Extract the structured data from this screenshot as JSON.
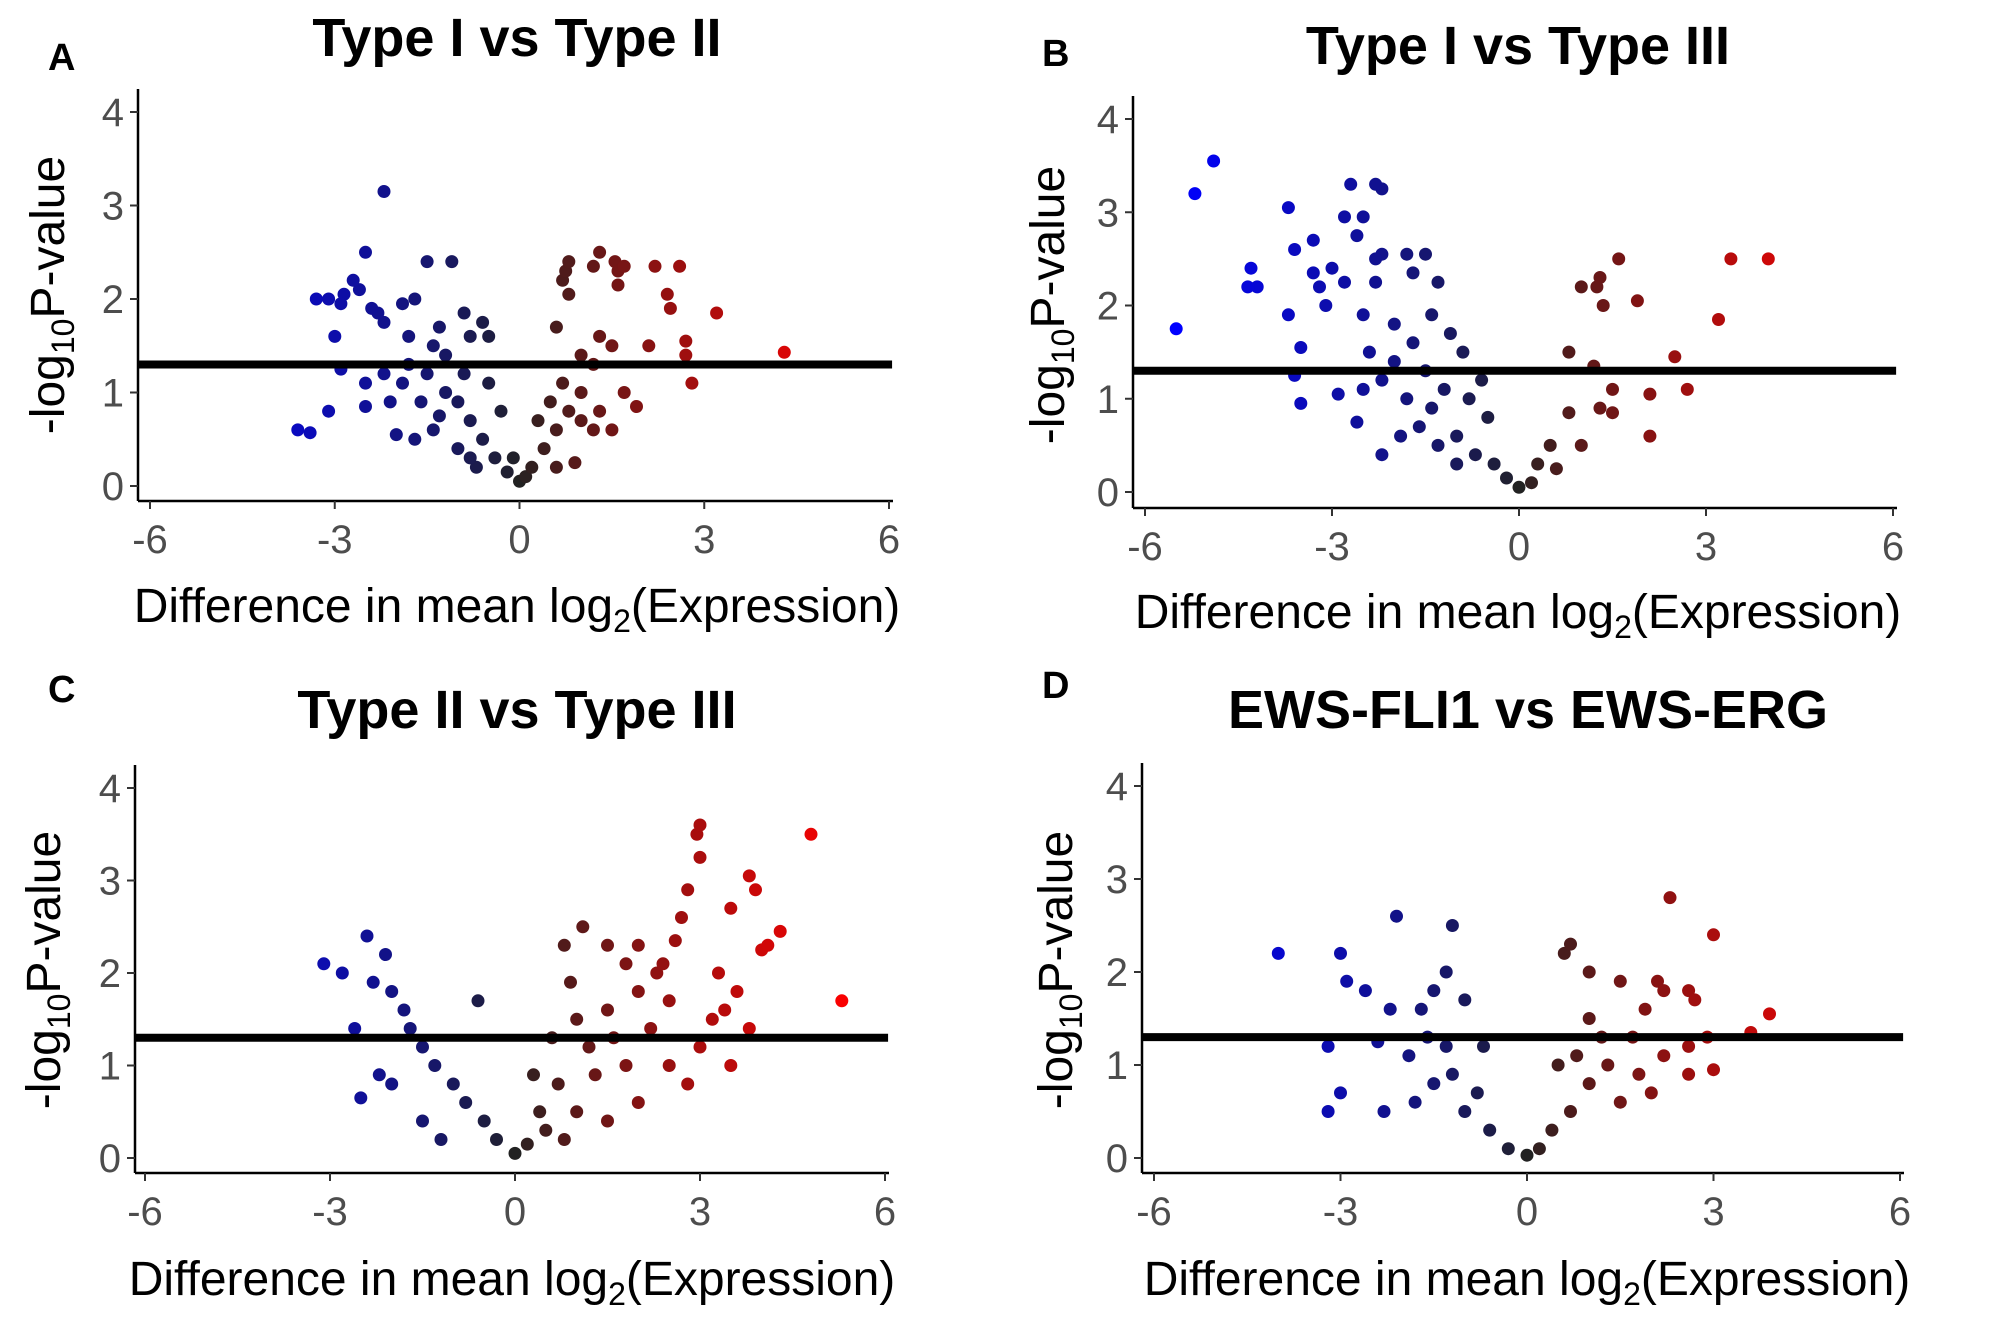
{
  "chart_data": [
    {
      "type": "scatter",
      "panel_letter": "A",
      "title": "Type I vs Type II",
      "xlabel": {
        "pre": "Difference in mean log",
        "sub": "2",
        "post": "(Expression)"
      },
      "ylabel": {
        "pre": "-log",
        "sub": "10",
        "post": "P-value"
      },
      "xlim": [
        -6,
        6
      ],
      "ylim": [
        0,
        4
      ],
      "xticks": [
        "-6",
        "-3",
        "0",
        "3",
        "6"
      ],
      "yticks": [
        "0",
        "1",
        "2",
        "3",
        "4"
      ],
      "threshold": 1.3,
      "grid": false,
      "color_scale": {
        "negative": "#0000ff",
        "zero": "#222222",
        "positive": "#ff0000"
      },
      "points": [
        [
          -3.6,
          0.6
        ],
        [
          -3.4,
          0.57
        ],
        [
          -3.1,
          0.8
        ],
        [
          -3.3,
          2.0
        ],
        [
          -3.1,
          2.0
        ],
        [
          -2.9,
          1.95
        ],
        [
          -2.85,
          2.05
        ],
        [
          -3.0,
          1.6
        ],
        [
          -2.6,
          2.1
        ],
        [
          -2.7,
          2.2
        ],
        [
          -2.5,
          2.5
        ],
        [
          -2.2,
          3.15
        ],
        [
          -2.4,
          1.9
        ],
        [
          -2.3,
          1.85
        ],
        [
          -2.2,
          1.75
        ],
        [
          -1.9,
          1.95
        ],
        [
          -1.7,
          2.0
        ],
        [
          -1.5,
          2.4
        ],
        [
          -1.1,
          2.4
        ],
        [
          -0.9,
          1.85
        ],
        [
          -0.6,
          1.75
        ],
        [
          -2.5,
          1.1
        ],
        [
          -2.5,
          0.85
        ],
        [
          -2.9,
          1.25
        ],
        [
          -2.1,
          0.9
        ],
        [
          -2.0,
          0.55
        ],
        [
          -1.7,
          0.5
        ],
        [
          -0.8,
          1.6
        ],
        [
          -0.5,
          1.6
        ],
        [
          -1.3,
          1.7
        ],
        [
          -1.4,
          1.5
        ],
        [
          -1.8,
          1.6
        ],
        [
          0.8,
          2.4
        ],
        [
          0.75,
          2.3
        ],
        [
          0.7,
          2.2
        ],
        [
          0.8,
          2.05
        ],
        [
          1.3,
          2.5
        ],
        [
          1.2,
          2.35
        ],
        [
          1.55,
          2.4
        ],
        [
          1.6,
          2.3
        ],
        [
          1.7,
          2.35
        ],
        [
          1.6,
          2.15
        ],
        [
          2.2,
          2.35
        ],
        [
          2.6,
          2.35
        ],
        [
          2.4,
          2.05
        ],
        [
          2.45,
          1.9
        ],
        [
          3.2,
          1.85
        ],
        [
          4.3,
          1.43
        ],
        [
          2.7,
          1.55
        ],
        [
          2.7,
          1.4
        ],
        [
          2.8,
          1.1
        ],
        [
          2.1,
          1.5
        ],
        [
          1.9,
          0.85
        ],
        [
          1.7,
          1.0
        ],
        [
          1.5,
          0.6
        ],
        [
          1.3,
          0.8
        ],
        [
          0.6,
          1.7
        ],
        [
          1.3,
          1.6
        ],
        [
          1.5,
          1.5
        ],
        [
          1.0,
          0.7
        ],
        [
          0.9,
          0.25
        ],
        [
          1.0,
          1.4
        ],
        [
          1.2,
          1.3
        ],
        [
          -1.5,
          1.2
        ],
        [
          -1.2,
          1.0
        ],
        [
          -1.0,
          0.9
        ],
        [
          -0.8,
          0.7
        ],
        [
          -0.6,
          0.5
        ],
        [
          -0.4,
          0.3
        ],
        [
          -0.2,
          0.15
        ],
        [
          0,
          0.05
        ],
        [
          0.2,
          0.2
        ],
        [
          0.4,
          0.4
        ],
        [
          0.6,
          0.6
        ],
        [
          0.8,
          0.8
        ],
        [
          1.0,
          1.0
        ],
        [
          -1.8,
          1.3
        ],
        [
          -1.4,
          0.6
        ],
        [
          -1.0,
          0.4
        ],
        [
          -0.7,
          0.2
        ],
        [
          0.5,
          0.9
        ],
        [
          -2.2,
          1.2
        ],
        [
          -1.6,
          0.9
        ],
        [
          -0.5,
          1.1
        ],
        [
          -0.3,
          0.8
        ],
        [
          0.3,
          0.7
        ],
        [
          0.7,
          1.1
        ],
        [
          -1.2,
          1.4
        ],
        [
          -0.9,
          1.2
        ],
        [
          1.2,
          0.6
        ],
        [
          0.6,
          0.2
        ],
        [
          -0.8,
          0.3
        ],
        [
          -1.9,
          1.1
        ],
        [
          -1.3,
          0.75
        ],
        [
          -0.1,
          0.3
        ],
        [
          0.1,
          0.1
        ]
      ]
    },
    {
      "type": "scatter",
      "panel_letter": "B",
      "title": "Type I vs Type III",
      "xlabel": {
        "pre": "Difference in mean log",
        "sub": "2",
        "post": "(Expression)"
      },
      "ylabel": {
        "pre": "-log",
        "sub": "10",
        "post": "P-value"
      },
      "xlim": [
        -6,
        6
      ],
      "ylim": [
        0,
        4
      ],
      "xticks": [
        "-6",
        "-3",
        "0",
        "3",
        "6"
      ],
      "yticks": [
        "0",
        "1",
        "2",
        "3",
        "4"
      ],
      "threshold": 1.3,
      "grid": false,
      "color_scale": {
        "negative": "#0000ff",
        "zero": "#222222",
        "positive": "#ff0000"
      },
      "points": [
        [
          -5.5,
          1.75
        ],
        [
          -5.2,
          3.2
        ],
        [
          -4.9,
          3.55
        ],
        [
          -4.3,
          2.4
        ],
        [
          -4.35,
          2.2
        ],
        [
          -4.2,
          2.2
        ],
        [
          -3.7,
          3.05
        ],
        [
          -3.6,
          2.6
        ],
        [
          -3.5,
          1.55
        ],
        [
          -3.7,
          1.9
        ],
        [
          -3.3,
          2.7
        ],
        [
          -3.2,
          2.2
        ],
        [
          -3.1,
          2.0
        ],
        [
          -2.5,
          1.9
        ],
        [
          -2.6,
          2.75
        ],
        [
          -2.8,
          2.95
        ],
        [
          -2.5,
          2.95
        ],
        [
          -2.7,
          3.3
        ],
        [
          -2.3,
          3.3
        ],
        [
          -2.2,
          3.25
        ],
        [
          -2.2,
          2.55
        ],
        [
          -2.3,
          2.5
        ],
        [
          -1.8,
          2.55
        ],
        [
          -1.5,
          2.55
        ],
        [
          -1.3,
          2.25
        ],
        [
          -1.7,
          2.35
        ],
        [
          -2.3,
          2.25
        ],
        [
          -3.0,
          2.4
        ],
        [
          -3.3,
          2.35
        ],
        [
          -2.8,
          2.25
        ],
        [
          -3.6,
          1.25
        ],
        [
          -2.9,
          1.05
        ],
        [
          -3.5,
          0.95
        ],
        [
          -2.6,
          0.75
        ],
        [
          -2.2,
          0.4
        ],
        [
          -1.9,
          0.6
        ],
        [
          -2.4,
          1.5
        ],
        [
          -2.0,
          1.8
        ],
        [
          -1.7,
          1.6
        ],
        [
          -1.4,
          1.9
        ],
        [
          -1.1,
          1.7
        ],
        [
          -0.9,
          1.5
        ],
        [
          -2.2,
          1.2
        ],
        [
          -1.8,
          1.0
        ],
        [
          -1.5,
          1.3
        ],
        [
          -1.2,
          1.1
        ],
        [
          -0.8,
          1.0
        ],
        [
          -0.5,
          0.8
        ],
        [
          -1.6,
          0.7
        ],
        [
          -1.3,
          0.5
        ],
        [
          -1.0,
          0.6
        ],
        [
          -0.7,
          0.4
        ],
        [
          -0.4,
          0.3
        ],
        [
          -0.2,
          0.15
        ],
        [
          0,
          0.05
        ],
        [
          -2.0,
          1.4
        ],
        [
          -2.5,
          1.1
        ],
        [
          -1.4,
          0.9
        ],
        [
          -0.6,
          1.2
        ],
        [
          -1.0,
          0.3
        ],
        [
          1.0,
          2.2
        ],
        [
          1.25,
          2.2
        ],
        [
          1.35,
          2.0
        ],
        [
          1.3,
          2.3
        ],
        [
          1.6,
          2.5
        ],
        [
          1.9,
          2.05
        ],
        [
          3.4,
          2.5
        ],
        [
          4.0,
          2.5
        ],
        [
          3.2,
          1.85
        ],
        [
          2.5,
          1.45
        ],
        [
          2.7,
          1.1
        ],
        [
          2.1,
          1.05
        ],
        [
          2.1,
          0.6
        ],
        [
          1.5,
          1.1
        ],
        [
          1.2,
          1.35
        ],
        [
          0.8,
          0.85
        ],
        [
          1.3,
          0.9
        ],
        [
          0.5,
          0.5
        ],
        [
          0.3,
          0.3
        ],
        [
          0.8,
          1.5
        ],
        [
          1.5,
          0.85
        ],
        [
          0.2,
          0.1
        ],
        [
          0.6,
          0.25
        ],
        [
          1.0,
          0.5
        ]
      ]
    },
    {
      "type": "scatter",
      "panel_letter": "C",
      "title": "Type II vs Type III",
      "xlabel": {
        "pre": "Difference in mean log",
        "sub": "2",
        "post": "(Expression)"
      },
      "ylabel": {
        "pre": "-log",
        "sub": "10",
        "post": "P-value"
      },
      "xlim": [
        -6,
        6
      ],
      "ylim": [
        0,
        4
      ],
      "xticks": [
        "-6",
        "-3",
        "0",
        "3",
        "6"
      ],
      "yticks": [
        "0",
        "1",
        "2",
        "3",
        "4"
      ],
      "threshold": 1.3,
      "grid": false,
      "color_scale": {
        "negative": "#0000ff",
        "zero": "#222222",
        "positive": "#ff0000"
      },
      "points": [
        [
          -3.1,
          2.1
        ],
        [
          -2.8,
          2.0
        ],
        [
          -2.4,
          2.4
        ],
        [
          -2.1,
          2.2
        ],
        [
          -2.0,
          1.8
        ],
        [
          -2.3,
          1.9
        ],
        [
          -1.8,
          1.6
        ],
        [
          -2.6,
          1.4
        ],
        [
          -2.5,
          0.65
        ],
        [
          -2.2,
          0.9
        ],
        [
          -2.0,
          0.8
        ],
        [
          -1.5,
          0.4
        ],
        [
          -1.2,
          0.2
        ],
        [
          -0.6,
          1.7
        ],
        [
          -1.5,
          1.2
        ],
        [
          -1.0,
          0.8
        ],
        [
          -0.5,
          0.4
        ],
        [
          -1.3,
          1.0
        ],
        [
          -0.8,
          0.6
        ],
        [
          -0.3,
          0.2
        ],
        [
          0,
          0.05
        ],
        [
          -1.7,
          1.4
        ],
        [
          3.0,
          3.6
        ],
        [
          2.95,
          3.5
        ],
        [
          4.8,
          3.5
        ],
        [
          3.0,
          3.25
        ],
        [
          3.8,
          3.05
        ],
        [
          3.9,
          2.9
        ],
        [
          3.5,
          2.7
        ],
        [
          4.3,
          2.45
        ],
        [
          4.1,
          2.3
        ],
        [
          4.0,
          2.25
        ],
        [
          5.3,
          1.7
        ],
        [
          2.8,
          2.9
        ],
        [
          2.7,
          2.6
        ],
        [
          2.6,
          2.35
        ],
        [
          1.1,
          2.5
        ],
        [
          0.8,
          2.3
        ],
        [
          1.5,
          2.3
        ],
        [
          2.0,
          2.3
        ],
        [
          2.4,
          2.1
        ],
        [
          3.3,
          2.0
        ],
        [
          3.6,
          1.8
        ],
        [
          3.4,
          1.6
        ],
        [
          3.8,
          1.4
        ],
        [
          3.2,
          1.5
        ],
        [
          3.5,
          1.0
        ],
        [
          2.0,
          1.8
        ],
        [
          1.5,
          1.6
        ],
        [
          1.2,
          1.2
        ],
        [
          2.5,
          1.0
        ],
        [
          2.8,
          0.8
        ],
        [
          2.0,
          0.6
        ],
        [
          1.0,
          0.5
        ],
        [
          0.5,
          0.3
        ],
        [
          0.3,
          0.9
        ],
        [
          0.6,
          1.3
        ],
        [
          0.9,
          1.9
        ],
        [
          1.8,
          1.0
        ],
        [
          2.2,
          1.4
        ],
        [
          3.0,
          1.2
        ],
        [
          0.4,
          0.5
        ],
        [
          0.7,
          0.8
        ],
        [
          1.3,
          0.9
        ],
        [
          1.6,
          1.3
        ],
        [
          2.5,
          1.7
        ],
        [
          1.0,
          1.5
        ],
        [
          0.2,
          0.15
        ],
        [
          0.8,
          0.2
        ],
        [
          1.5,
          0.4
        ],
        [
          2.3,
          2.0
        ],
        [
          1.8,
          2.1
        ]
      ]
    },
    {
      "type": "scatter",
      "panel_letter": "D",
      "title": "EWS-FLI1 vs EWS-ERG",
      "xlabel": {
        "pre": "Difference in mean log",
        "sub": "2",
        "post": "(Expression)"
      },
      "ylabel": {
        "pre": "-log",
        "sub": "10",
        "post": "P-value"
      },
      "xlim": [
        -6,
        6
      ],
      "ylim": [
        0,
        4
      ],
      "xticks": [
        "-6",
        "-3",
        "0",
        "3",
        "6"
      ],
      "yticks": [
        "0",
        "1",
        "2",
        "3",
        "4"
      ],
      "threshold": 1.3,
      "grid": false,
      "color_scale": {
        "negative": "#0000ff",
        "zero": "#222222",
        "positive": "#ff0000"
      },
      "points": [
        [
          -4.0,
          2.2
        ],
        [
          -3.0,
          2.2
        ],
        [
          -2.1,
          2.6
        ],
        [
          -1.2,
          2.5
        ],
        [
          -2.9,
          1.9
        ],
        [
          -2.6,
          1.8
        ],
        [
          -3.2,
          1.2
        ],
        [
          -3.0,
          0.7
        ],
        [
          -3.2,
          0.5
        ],
        [
          -2.2,
          1.6
        ],
        [
          -2.4,
          1.25
        ],
        [
          -1.9,
          1.1
        ],
        [
          -2.3,
          0.5
        ],
        [
          -1.7,
          1.6
        ],
        [
          -1.5,
          1.8
        ],
        [
          -1.3,
          2.0
        ],
        [
          -1.0,
          1.7
        ],
        [
          -0.7,
          1.2
        ],
        [
          -1.5,
          0.8
        ],
        [
          -1.0,
          0.5
        ],
        [
          -0.6,
          0.3
        ],
        [
          -0.3,
          0.1
        ],
        [
          -1.8,
          0.6
        ],
        [
          -1.3,
          1.2
        ],
        [
          -1.2,
          0.9
        ],
        [
          -0.8,
          0.7
        ],
        [
          -1.6,
          1.3
        ],
        [
          0,
          0.03
        ],
        [
          0.7,
          2.3
        ],
        [
          0.6,
          2.2
        ],
        [
          1.0,
          2.0
        ],
        [
          1.5,
          1.9
        ],
        [
          2.1,
          1.9
        ],
        [
          2.3,
          2.8
        ],
        [
          2.2,
          1.8
        ],
        [
          2.6,
          1.8
        ],
        [
          2.7,
          1.7
        ],
        [
          3.0,
          2.4
        ],
        [
          3.9,
          1.55
        ],
        [
          3.6,
          1.35
        ],
        [
          3.0,
          0.95
        ],
        [
          2.6,
          0.9
        ],
        [
          2.6,
          1.2
        ],
        [
          2.9,
          1.3
        ],
        [
          1.9,
          1.6
        ],
        [
          1.7,
          1.3
        ],
        [
          1.3,
          1.0
        ],
        [
          1.0,
          0.8
        ],
        [
          0.7,
          0.5
        ],
        [
          0.4,
          0.3
        ],
        [
          0.2,
          0.1
        ],
        [
          2.2,
          1.1
        ],
        [
          1.5,
          0.6
        ],
        [
          1.0,
          1.5
        ],
        [
          0.5,
          1.0
        ],
        [
          2.0,
          0.7
        ],
        [
          1.2,
          1.3
        ],
        [
          0.8,
          1.1
        ],
        [
          1.8,
          0.9
        ]
      ]
    }
  ]
}
